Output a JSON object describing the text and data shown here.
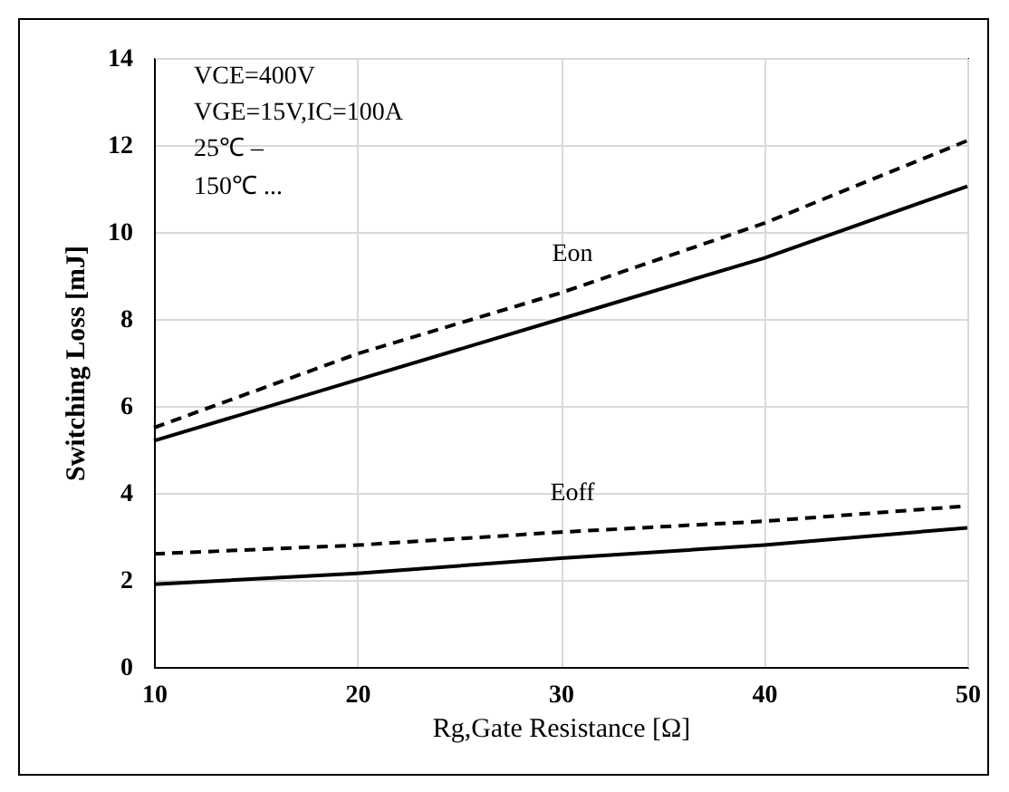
{
  "chart_data": {
    "type": "line",
    "xlabel": "Rg,Gate Resistance [Ω]",
    "ylabel": "Switching Loss [mJ]",
    "x": [
      10,
      20,
      30,
      40,
      50
    ],
    "series": [
      {
        "color": "#000000",
        "line_style": "solid",
        "values": [
          5.2,
          6.6,
          8.0,
          9.4,
          11.05
        ]
      },
      {
        "color": "#000000",
        "line_style": "dashed",
        "values": [
          5.5,
          7.2,
          8.6,
          10.2,
          12.1
        ]
      },
      {
        "color": "#000000",
        "line_style": "solid",
        "values": [
          1.9,
          2.15,
          2.5,
          2.8,
          3.2
        ]
      },
      {
        "color": "#000000",
        "line_style": "dashed",
        "values": [
          2.6,
          2.8,
          3.1,
          3.35,
          3.7
        ]
      }
    ],
    "xlim": [
      10,
      50
    ],
    "xticks": [
      10,
      20,
      30,
      40,
      50
    ],
    "ylim": [
      0,
      14
    ],
    "yticks": [
      0,
      2,
      4,
      6,
      8,
      10,
      12,
      14
    ],
    "grid": true,
    "annotations": [
      "VCE=400V",
      "VGE=15V,IC=100A",
      "25℃  –",
      "150℃  ...",
      "Eon",
      "Eoff"
    ]
  }
}
